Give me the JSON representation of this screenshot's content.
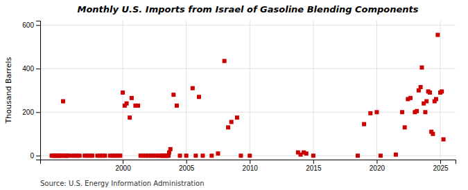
{
  "chart_data": {
    "type": "scatter",
    "title": "Monthly U.S. Imports from Israel of Gasoline Blending Components",
    "ylabel": "Thousand Barrels",
    "source": "Source: U.S. Energy Information Administration",
    "color": "#cc0000",
    "marker": "square",
    "grid": true,
    "xlim": [
      1993.5,
      2026.2
    ],
    "xticks": [
      2000,
      2005,
      2010,
      2015,
      2020,
      2025
    ],
    "ylim": [
      -18,
      620
    ],
    "yticks": [
      0,
      200,
      400,
      600
    ],
    "x": [
      1994.4,
      1994.5,
      1994.6,
      1994.7,
      1994.8,
      1994.9,
      1995.0,
      1995.1,
      1995.2,
      1995.3,
      1995.4,
      1995.5,
      1995.6,
      1995.7,
      1996.0,
      1996.2,
      1996.4,
      1996.6,
      1997.0,
      1997.2,
      1997.4,
      1997.6,
      1998.0,
      1998.2,
      1998.4,
      1998.6,
      1999.0,
      1999.2,
      1999.4,
      1999.6,
      1999.8,
      2000.0,
      2000.15,
      2000.3,
      2000.55,
      2000.7,
      2001.0,
      2001.2,
      2001.4,
      2001.6,
      2001.8,
      2002.0,
      2002.2,
      2002.4,
      2002.6,
      2002.8,
      2003.0,
      2003.1,
      2003.2,
      2003.3,
      2003.4,
      2003.5,
      2003.6,
      2003.65,
      2003.75,
      2004.0,
      2004.25,
      2004.5,
      2005.0,
      2005.5,
      2005.75,
      2006.0,
      2006.3,
      2007.0,
      2007.5,
      2008.0,
      2008.3,
      2008.55,
      2009.0,
      2009.3,
      2010.0,
      2013.8,
      2014.0,
      2014.25,
      2014.45,
      2015.0,
      2018.5,
      2019.0,
      2019.5,
      2020.0,
      2020.3,
      2021.5,
      2022.0,
      2022.2,
      2022.45,
      2022.65,
      2023.0,
      2023.15,
      2023.3,
      2023.45,
      2023.55,
      2023.7,
      2023.82,
      2023.92,
      2024.05,
      2024.18,
      2024.3,
      2024.42,
      2024.55,
      2024.67,
      2024.8,
      2025.0,
      2025.12,
      2025.25
    ],
    "values": [
      0,
      0,
      0,
      0,
      0,
      0,
      0,
      0,
      0,
      250,
      0,
      0,
      0,
      0,
      0,
      0,
      0,
      0,
      0,
      0,
      0,
      0,
      0,
      0,
      0,
      0,
      0,
      0,
      0,
      0,
      0,
      290,
      230,
      240,
      175,
      265,
      230,
      230,
      0,
      0,
      0,
      0,
      0,
      0,
      0,
      0,
      0,
      0,
      0,
      0,
      0,
      0,
      0,
      15,
      30,
      280,
      230,
      0,
      0,
      310,
      0,
      270,
      0,
      0,
      10,
      435,
      130,
      155,
      175,
      0,
      0,
      15,
      5,
      15,
      10,
      0,
      0,
      145,
      195,
      200,
      0,
      5,
      200,
      130,
      260,
      265,
      200,
      205,
      300,
      315,
      405,
      240,
      200,
      250,
      295,
      290,
      110,
      100,
      250,
      260,
      555,
      290,
      295,
      75
    ]
  }
}
